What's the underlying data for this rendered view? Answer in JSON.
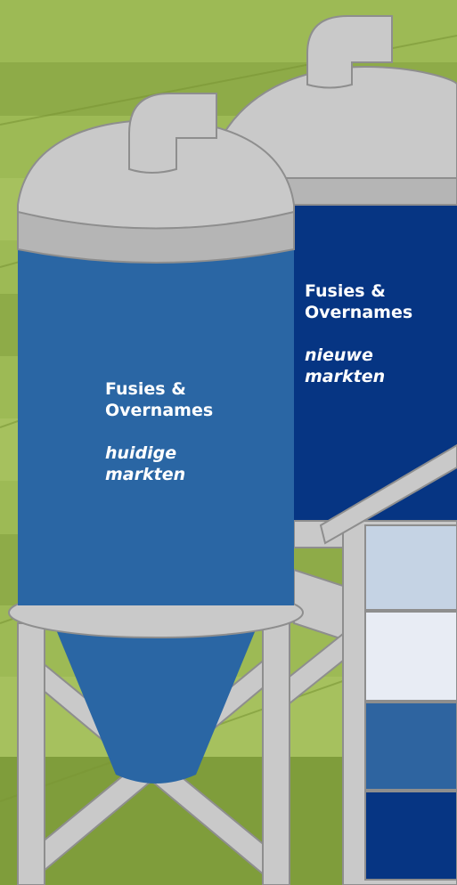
{
  "silos": [
    {
      "title": "Fusies & Overnames",
      "subtitle": "huidige markten"
    },
    {
      "title": "Fusies & Overnames",
      "subtitle": "nieuwe markten"
    }
  ]
}
